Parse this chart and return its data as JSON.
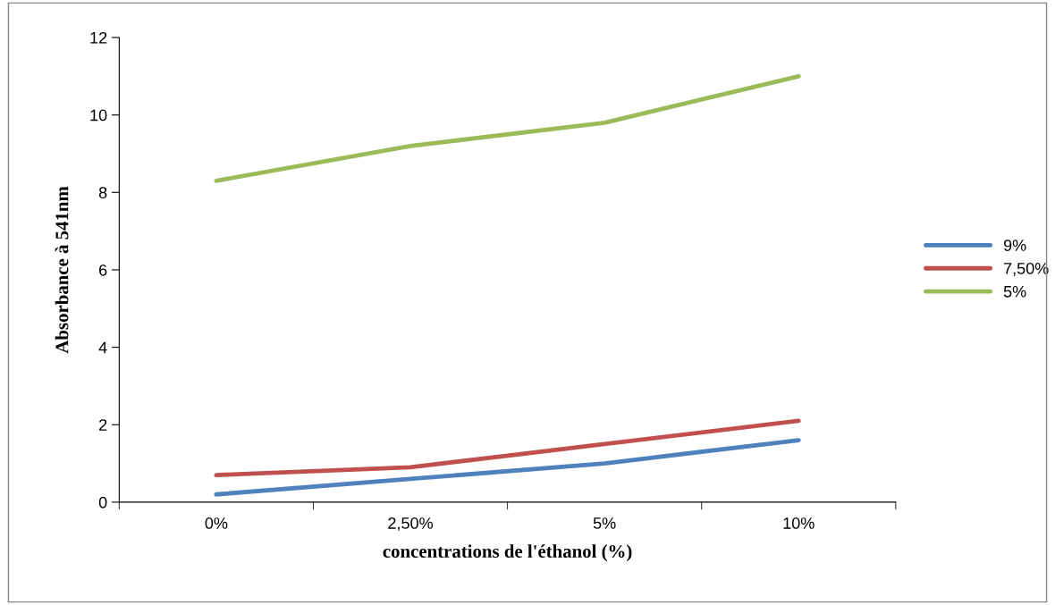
{
  "chart_data": {
    "type": "line",
    "xlabel": "concentrations de l'éthanol (%)",
    "ylabel": "Absorbance à 541nm",
    "categories": [
      "0%",
      "2,50%",
      "5%",
      "10%"
    ],
    "series": [
      {
        "name": "9%",
        "color": "#4f81bd",
        "values": [
          0.2,
          0.6,
          1.0,
          1.6
        ]
      },
      {
        "name": "7,50%",
        "color": "#c0504d",
        "values": [
          0.7,
          0.9,
          1.5,
          2.1
        ]
      },
      {
        "name": "5%",
        "color": "#9bbb59",
        "values": [
          8.3,
          9.2,
          9.8,
          11.0
        ]
      }
    ],
    "ylim": [
      0,
      12
    ],
    "yticks": [
      0,
      2,
      4,
      6,
      8,
      10,
      12
    ],
    "grid": false,
    "legend": "right",
    "marker": "none",
    "line_style": "solid"
  }
}
